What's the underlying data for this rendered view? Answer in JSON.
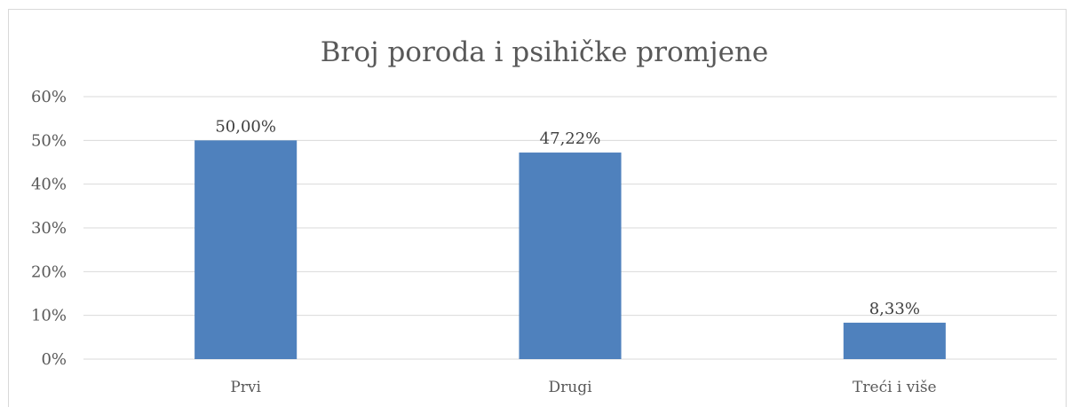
{
  "chart_data": {
    "type": "bar",
    "title": "Broj poroda i psihičke promjene",
    "categories": [
      "Prvi",
      "Drugi",
      "Treći i više"
    ],
    "values": [
      50.0,
      47.22,
      8.33
    ],
    "value_labels": [
      "50,00%",
      "47,22%",
      "8,33%"
    ],
    "y_ticks": [
      "0%",
      "10%",
      "20%",
      "30%",
      "40%",
      "50%",
      "60%"
    ],
    "ylim": [
      0,
      60
    ],
    "grid": true,
    "legend": "none",
    "bar_color": "#4f81bd"
  }
}
